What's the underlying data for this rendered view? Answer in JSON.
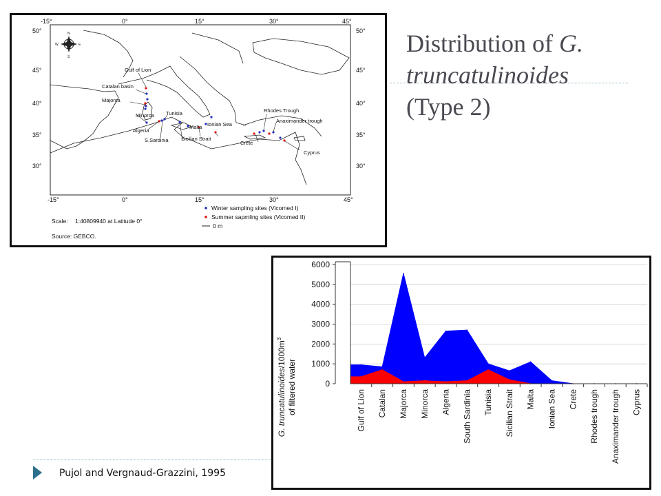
{
  "slide": {
    "title_prefix": "Distribution of ",
    "title_italic": "G. truncatulinoides",
    "title_suffix": "(Type 2)",
    "citation": "Pujol and Vergnaud-Grazzini, 1995",
    "colors": {
      "accent": "#2e6f8e",
      "title": "#4a4a52"
    }
  },
  "map": {
    "lon_labels": [
      "-15°",
      "0°",
      "15°",
      "30°",
      "45°"
    ],
    "lat_labels": [
      "50°",
      "45°",
      "40°",
      "35°",
      "30°"
    ],
    "compass": [
      "N",
      "W",
      "E",
      "S"
    ],
    "site_labels": [
      "Gulf of Lion",
      "Catalan basin",
      "Majorca",
      "Minorca",
      "Tunisia",
      "Algeria",
      "S.Sardinia",
      "Malta",
      "Sicilian Strait",
      "Ionian Sea",
      "Crete",
      "Rhodes Trough",
      "Anaximander trough",
      "Cyprus"
    ],
    "legend": [
      "Winter sampling sites (Vicomed I)",
      "Summer sapmling sites (Vicomed II)",
      "0 m"
    ],
    "scale_label": "Scale:",
    "scale_value": "1:40809940 at Latitude 0°",
    "source_label": "Source: GEBCO.",
    "colors": {
      "winter": "#1f2fbf",
      "summer": "#e01010",
      "land": "#222222"
    }
  },
  "chart_data": {
    "type": "area",
    "ylabel_italic": "G. truncatulinoides",
    "ylabel_rest": "/1000m",
    "ylabel_sup": "3",
    "ylabel_line2": "of filtered water",
    "categories": [
      "Gulf of Lion",
      "Catalan",
      "Majorca",
      "Minorca",
      "Algeria",
      "South Sardinia",
      "Tunisia",
      "Sicilian Strait",
      "Malta",
      "Ionian Sea",
      "Crete",
      "Rhodes trough",
      "Anaximander trough",
      "Cyprus"
    ],
    "y_ticks": [
      "6000",
      "5000",
      "4000",
      "3000",
      "2000",
      "1000",
      "0"
    ],
    "ylim": [
      0,
      6000
    ],
    "series": [
      {
        "color": "#0000ff",
        "values": [
          950,
          850,
          5550,
          1300,
          2650,
          2700,
          1000,
          650,
          1100,
          150,
          0,
          0,
          0,
          0
        ]
      },
      {
        "color": "#ff0000",
        "values": [
          350,
          700,
          100,
          150,
          100,
          150,
          700,
          200,
          0,
          0,
          0,
          0,
          0,
          0
        ]
      }
    ],
    "grid": true
  }
}
